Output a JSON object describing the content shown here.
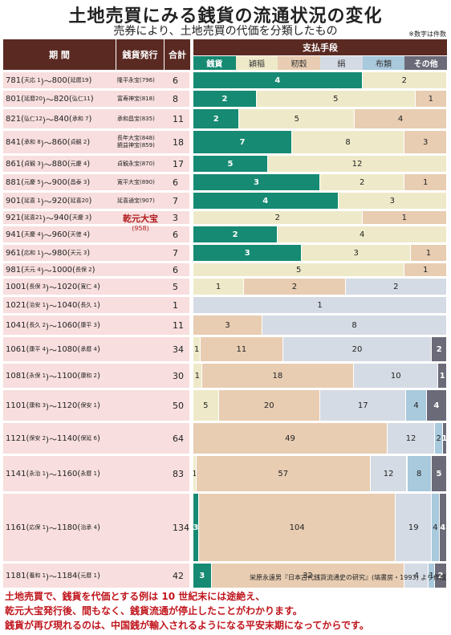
{
  "title": "土地売買にみる銭貨の流通状況の変化",
  "subtitle": "売券により、土地売買の代価を分類したもの",
  "note": "※数字は件数",
  "headers": {
    "period": "期 間",
    "coin": "銭貨発行",
    "total": "合計",
    "means": "支払手段",
    "categories": [
      "銭貨",
      "穎稲",
      "籾穀",
      "絹",
      "布類",
      "その他"
    ]
  },
  "colors": {
    "categories": [
      "#168a72",
      "#eeeac9",
      "#e8cdb2",
      "#d5dbe4",
      "#a9c9dc",
      "#6a6a78"
    ],
    "row_background": "#f8dede",
    "header_background": "#5a2a22"
  },
  "kengen": {
    "name": "乾元大宝",
    "year": "(958)"
  },
  "source": "栄原永遠男『日本古代銭貨流通史の研究』(塙書房・1993) より作成",
  "message": [
    "土地売買で、銭貨を代価とする例は 10 世紀末には途絶え、",
    "乾元大宝発行後、間もなく、銭貨流通が停止したことがわかります。",
    "銭貨が再び現れるのは、中国銭が輸入されるようになる平安末期になってからです。"
  ],
  "chart_data": {
    "type": "bar",
    "stacked": true,
    "orientation": "horizontal",
    "series_names": [
      "銭貨",
      "穎稲",
      "籾穀",
      "絹",
      "布類",
      "その他"
    ],
    "rows": [
      {
        "start": "781",
        "start_era": "天応 1",
        "end": "800",
        "end_era": "延暦19",
        "coins": [
          "隆平永宝(796)"
        ],
        "total": "6",
        "values": [
          4,
          2,
          0,
          0,
          0,
          0
        ]
      },
      {
        "start": "801",
        "start_era": "延暦20",
        "end": "820",
        "end_era": "弘仁11",
        "coins": [
          "富寿神宝(818)"
        ],
        "total": "8",
        "values": [
          2,
          5,
          1,
          0,
          0,
          0
        ]
      },
      {
        "start": "821",
        "start_era": "弘仁12",
        "end": "840",
        "end_era": "承和 7",
        "coins": [
          "承和昌宝(835)"
        ],
        "total": "11",
        "values": [
          2,
          5,
          4,
          0,
          0,
          0
        ]
      },
      {
        "start": "841",
        "start_era": "承和 8",
        "end": "860",
        "end_era": "貞観 2",
        "coins": [
          "長年大宝(848)",
          "饒益神宝(859)"
        ],
        "total": "18",
        "values": [
          7,
          8,
          3,
          0,
          0,
          0
        ]
      },
      {
        "start": "861",
        "start_era": "貞観 3",
        "end": "880",
        "end_era": "元慶 4",
        "coins": [
          "貞観永宝(870)"
        ],
        "total": "17",
        "values": [
          5,
          12,
          0,
          0,
          0,
          0
        ]
      },
      {
        "start": "881",
        "start_era": "元慶 5",
        "end": "900",
        "end_era": "昌泰 3",
        "coins": [
          "寛平大宝(890)"
        ],
        "total": "6",
        "values": [
          3,
          2,
          1,
          0,
          0,
          0
        ]
      },
      {
        "start": "901",
        "start_era": "延喜 1",
        "end": "920",
        "end_era": "延喜20",
        "coins": [
          "延喜通宝(907)"
        ],
        "total": "7",
        "values": [
          4,
          3,
          0,
          0,
          0,
          0
        ]
      },
      {
        "start": "921",
        "start_era": "延喜21",
        "end": "940",
        "end_era": "天慶 3",
        "coins": [],
        "total": "3",
        "values": [
          0,
          2,
          1,
          0,
          0,
          0
        ]
      },
      {
        "start": "941",
        "start_era": "天慶 4",
        "end": "960",
        "end_era": "天徳 4",
        "coins": [],
        "total": "6",
        "values": [
          2,
          4,
          0,
          0,
          0,
          0
        ]
      },
      {
        "start": "961",
        "start_era": "応和 1",
        "end": "980",
        "end_era": "天元 3",
        "coins": [],
        "total": "7",
        "values": [
          3,
          3,
          1,
          0,
          0,
          0
        ]
      },
      {
        "start": "981",
        "start_era": "天元 4",
        "end": "1000",
        "end_era": "長保 2",
        "coins": [],
        "total": "6",
        "values": [
          0,
          5,
          1,
          0,
          0,
          0
        ]
      },
      {
        "start": "1001",
        "start_era": "長保 3",
        "end": "1020",
        "end_era": "寛仁 4",
        "coins": [],
        "total": "5",
        "values": [
          0,
          1,
          2,
          2,
          0,
          0
        ]
      },
      {
        "start": "1021",
        "start_era": "治安 1",
        "end": "1040",
        "end_era": "長久 1",
        "coins": [],
        "total": "1",
        "values": [
          0,
          0,
          0,
          1,
          0,
          0
        ]
      },
      {
        "start": "1041",
        "start_era": "長久 2",
        "end": "1060",
        "end_era": "康平 3",
        "coins": [],
        "total": "11",
        "values": [
          0,
          0,
          3,
          8,
          0,
          0
        ]
      },
      {
        "start": "1061",
        "start_era": "康平 4",
        "end": "1080",
        "end_era": "承暦 4",
        "coins": [],
        "total": "34",
        "values": [
          0,
          1,
          11,
          20,
          0,
          2
        ]
      },
      {
        "start": "1081",
        "start_era": "永保 1",
        "end": "1100",
        "end_era": "康和 2",
        "coins": [],
        "total": "30",
        "values": [
          0,
          1,
          18,
          10,
          0,
          1
        ]
      },
      {
        "start": "1101",
        "start_era": "康和 3",
        "end": "1120",
        "end_era": "保安 1",
        "coins": [],
        "total": "50",
        "values": [
          0,
          5,
          20,
          17,
          4,
          4
        ]
      },
      {
        "start": "1121",
        "start_era": "保安 2",
        "end": "1140",
        "end_era": "保延 6",
        "coins": [],
        "total": "64",
        "values": [
          0,
          0,
          49,
          12,
          2,
          1
        ]
      },
      {
        "start": "1141",
        "start_era": "永治 1",
        "end": "1160",
        "end_era": "永暦 1",
        "coins": [],
        "total": "83",
        "values": [
          0,
          1,
          57,
          12,
          8,
          5
        ]
      },
      {
        "start": "1161",
        "start_era": "応保 1",
        "end": "1180",
        "end_era": "治承 4",
        "coins": [],
        "total": "134",
        "values": [
          3,
          0,
          104,
          19,
          4,
          4
        ]
      },
      {
        "start": "1181",
        "start_era": "養和 1",
        "end": "1184",
        "end_era": "元暦 1",
        "coins": [],
        "total": "42",
        "values": [
          3,
          0,
          32,
          4,
          1,
          2
        ]
      }
    ]
  }
}
